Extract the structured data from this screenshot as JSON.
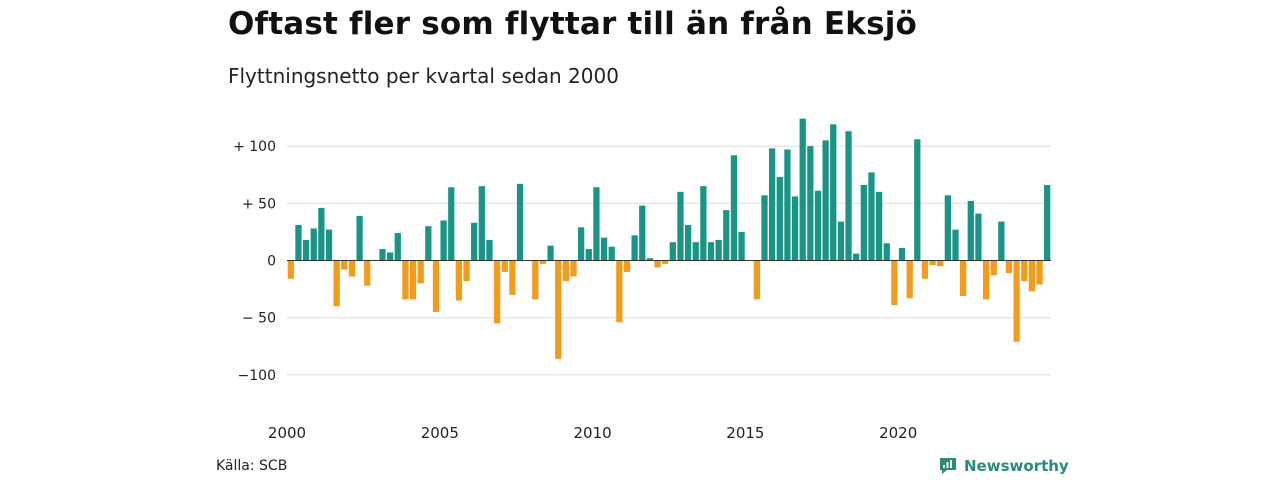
{
  "header": {
    "title": "Oftast fler som flyttar till än från Eksjö",
    "subtitle": "Flyttningsnetto per kvartal sedan 2000"
  },
  "footer": {
    "source": "Källa: SCB",
    "brand": "Newsworthy",
    "brand_icon": "newsworthy-logo-icon"
  },
  "colors": {
    "positive": "#1a9485",
    "negative": "#f39c1b",
    "grid": "#dcdcdc",
    "brand": "#2a8b7d"
  },
  "chart_data": {
    "type": "bar",
    "title": "Oftast fler som flyttar till än från Eksjö",
    "subtitle": "Flyttningsnetto per kvartal sedan 2000",
    "xlabel": "",
    "ylabel": "",
    "grid": true,
    "ylim": [
      -100,
      125
    ],
    "y_ticks": [
      100,
      50,
      0,
      -50,
      -100
    ],
    "y_tick_labels": [
      "+ 100",
      "+  50",
      "0",
      "− 50",
      "−100"
    ],
    "x_ticks": [
      2000,
      2005,
      2010,
      2015,
      2020
    ],
    "x_tick_labels": [
      "2000",
      "2005",
      "2010",
      "2015",
      "2020"
    ],
    "start_year": 2000,
    "periods_per_year": 4,
    "values": [
      -16,
      31,
      18,
      28,
      46,
      27,
      -40,
      -8,
      -14,
      39,
      -22,
      0,
      10,
      7,
      24,
      -34,
      -34,
      -20,
      30,
      -45,
      35,
      64,
      -35,
      -18,
      33,
      65,
      18,
      -55,
      -10,
      -30,
      67,
      0,
      -34,
      -3,
      13,
      -86,
      -18,
      -14,
      29,
      10,
      64,
      20,
      12,
      -54,
      -10,
      22,
      48,
      2,
      -6,
      -3,
      16,
      60,
      31,
      16,
      65,
      16,
      18,
      44,
      92,
      25,
      0,
      -34,
      57,
      98,
      73,
      97,
      56,
      124,
      100,
      61,
      105,
      119,
      34,
      113,
      6,
      66,
      77,
      60,
      15,
      -39,
      11,
      -33,
      106,
      -16,
      -4,
      -5,
      57,
      27,
      -31,
      52,
      41,
      -34,
      -13,
      34,
      -11,
      -71,
      -18,
      -27,
      -21,
      66
    ]
  }
}
